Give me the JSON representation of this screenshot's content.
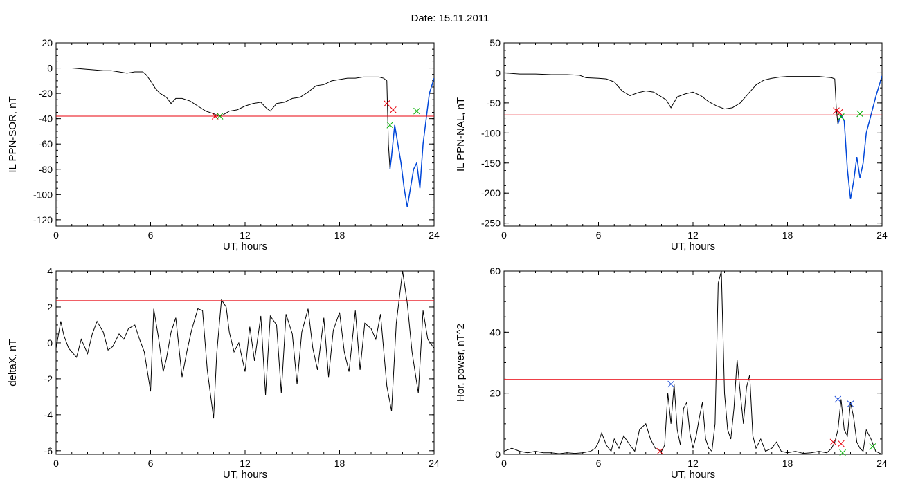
{
  "page": {
    "title": "Date:  15.11.2011"
  },
  "colors": {
    "threshold": "#e8000b",
    "trace": "#000000",
    "substorm_segment": "#0047d9",
    "marker_red": "#e8000b",
    "marker_green": "#00b000",
    "marker_blue": "#1f4fd8"
  },
  "chart_data": [
    {
      "id": "sor",
      "type": "line",
      "xlabel": "UT, hours",
      "ylabel": "IL PPN-SOR, nT",
      "xlim": [
        0,
        24
      ],
      "ylim": [
        -125,
        20
      ],
      "xticks": [
        0,
        6,
        12,
        18,
        24
      ],
      "yticks": [
        20,
        0,
        -20,
        -40,
        -60,
        -80,
        -100,
        -120
      ],
      "grid": false,
      "threshold": -38,
      "series": [
        {
          "x": [
            0,
            1,
            2,
            3,
            3.5,
            4,
            4.5,
            5,
            5.5,
            5.7,
            6,
            6.3,
            6.6,
            7,
            7.3,
            7.6,
            8,
            8.5,
            9,
            9.5,
            10,
            10.3,
            10.6,
            11,
            11.5,
            12,
            12.5,
            13,
            13.3,
            13.6,
            14,
            14.5,
            15,
            15.5,
            16,
            16.5,
            17,
            17.5,
            18,
            18.5,
            19,
            19.5,
            20,
            20.5,
            20.8,
            21,
            21.1,
            21.2,
            21.3,
            21.5,
            21.7,
            21.9,
            22.1,
            22.3,
            22.5,
            22.7,
            22.9,
            23.1,
            23.3,
            23.5,
            23.7,
            24
          ],
          "y": [
            0,
            0,
            -1,
            -2,
            -2,
            -3,
            -4,
            -3,
            -3,
            -5,
            -10,
            -16,
            -20,
            -23,
            -28,
            -24,
            -24,
            -26,
            -30,
            -34,
            -36,
            -38,
            -37,
            -34,
            -33,
            -30,
            -28,
            -27,
            -31,
            -34,
            -28,
            -27,
            -24,
            -23,
            -19,
            -14,
            -13,
            -10,
            -9,
            -8,
            -8,
            -7,
            -7,
            -7,
            -8,
            -10,
            -60,
            -80,
            -70,
            -45,
            -60,
            -75,
            -95,
            -110,
            -95,
            -80,
            -75,
            -95,
            -60,
            -40,
            -20,
            -8
          ],
          "highlight_from_x": 21.2
        }
      ],
      "markers": [
        {
          "x": 10.1,
          "y": -38,
          "color": "red"
        },
        {
          "x": 10.4,
          "y": -38,
          "color": "green"
        },
        {
          "x": 21.0,
          "y": -28,
          "color": "red"
        },
        {
          "x": 21.4,
          "y": -33,
          "color": "red"
        },
        {
          "x": 21.2,
          "y": -45,
          "color": "green"
        },
        {
          "x": 22.9,
          "y": -34,
          "color": "green"
        }
      ]
    },
    {
      "id": "nal",
      "type": "line",
      "xlabel": "UT, hours",
      "ylabel": "IL PPN-NAL, nT",
      "xlim": [
        0,
        24
      ],
      "ylim": [
        -255,
        50
      ],
      "xticks": [
        0,
        6,
        12,
        18,
        24
      ],
      "yticks": [
        50,
        0,
        -50,
        -100,
        -150,
        -200,
        -250
      ],
      "grid": false,
      "threshold": -70,
      "series": [
        {
          "x": [
            0,
            1,
            2,
            3,
            4,
            4.8,
            5.2,
            6,
            6.5,
            7,
            7.5,
            8,
            8.5,
            9,
            9.5,
            10,
            10.3,
            10.6,
            11,
            11.5,
            12,
            12.5,
            13,
            13.5,
            14,
            14.5,
            15,
            15.5,
            16,
            16.5,
            17,
            17.5,
            18,
            19,
            20,
            20.8,
            21,
            21.1,
            21.2,
            21.4,
            21.6,
            21.8,
            22,
            22.2,
            22.4,
            22.6,
            22.8,
            23,
            23.3,
            23.6,
            24
          ],
          "y": [
            0,
            -2,
            -2,
            -3,
            -3,
            -4,
            -8,
            -9,
            -10,
            -15,
            -30,
            -38,
            -33,
            -30,
            -32,
            -40,
            -45,
            -58,
            -40,
            -35,
            -32,
            -38,
            -48,
            -55,
            -60,
            -58,
            -50,
            -35,
            -20,
            -12,
            -9,
            -7,
            -6,
            -6,
            -6,
            -8,
            -10,
            -60,
            -85,
            -70,
            -80,
            -160,
            -210,
            -180,
            -140,
            -175,
            -150,
            -100,
            -70,
            -40,
            -5
          ],
          "highlight_from_x": 21.2
        }
      ],
      "markers": [
        {
          "x": 21.1,
          "y": -63,
          "color": "red"
        },
        {
          "x": 21.3,
          "y": -66,
          "color": "red"
        },
        {
          "x": 21.4,
          "y": -73,
          "color": "green"
        },
        {
          "x": 22.6,
          "y": -68,
          "color": "green"
        }
      ]
    },
    {
      "id": "deltax",
      "type": "line",
      "xlabel": "UT, hours",
      "ylabel": "deltaX, nT",
      "xlim": [
        0,
        24
      ],
      "ylim": [
        -6.2,
        4
      ],
      "xticks": [
        0,
        6,
        12,
        18,
        24
      ],
      "yticks": [
        4,
        2,
        0,
        -2,
        -4,
        -6
      ],
      "grid": false,
      "threshold": 2.35,
      "series": [
        {
          "x": [
            0,
            0.3,
            0.5,
            0.8,
            1,
            1.3,
            1.6,
            2,
            2.3,
            2.6,
            3,
            3.3,
            3.6,
            4,
            4.3,
            4.6,
            5,
            5.3,
            5.6,
            6,
            6.2,
            6.5,
            6.8,
            7,
            7.3,
            7.6,
            8,
            8.3,
            8.6,
            9,
            9.3,
            9.6,
            10,
            10.2,
            10.5,
            10.8,
            11,
            11.3,
            11.6,
            12,
            12.3,
            12.6,
            13,
            13.3,
            13.6,
            14,
            14.3,
            14.6,
            15,
            15.3,
            15.6,
            16,
            16.3,
            16.6,
            17,
            17.3,
            17.6,
            18,
            18.3,
            18.6,
            19,
            19.3,
            19.6,
            20,
            20.3,
            20.6,
            21,
            21.3,
            21.6,
            22,
            22.3,
            22.6,
            23,
            23.3,
            23.6,
            24
          ],
          "y": [
            -0.3,
            1.2,
            0.4,
            -0.3,
            -0.5,
            -0.8,
            0.2,
            -0.6,
            0.5,
            1.2,
            0.6,
            -0.4,
            -0.2,
            0.5,
            0.2,
            0.8,
            1.0,
            0.2,
            -0.5,
            -2.7,
            1.9,
            0.3,
            -1.6,
            -0.9,
            0.6,
            1.4,
            -1.9,
            -0.5,
            0.7,
            1.9,
            1.8,
            -1.5,
            -4.2,
            -0.6,
            2.4,
            2.0,
            0.6,
            -0.5,
            0.0,
            -1.6,
            0.9,
            -1.0,
            1.5,
            -2.9,
            1.5,
            1.0,
            -2.8,
            1.6,
            0.5,
            -2.3,
            0.6,
            1.9,
            -0.3,
            -1.5,
            1.4,
            -1.9,
            0.7,
            1.7,
            -0.5,
            -1.6,
            1.8,
            -1.5,
            1.1,
            0.8,
            0.2,
            1.6,
            -2.4,
            -3.8,
            1.1,
            4.0,
            2.2,
            -0.5,
            -2.8,
            1.8,
            0.2,
            -0.3
          ],
          "highlight_from_x": null
        }
      ],
      "markers": []
    },
    {
      "id": "power",
      "type": "line",
      "xlabel": "UT, hours",
      "ylabel": "Hor. power, nT^2",
      "xlim": [
        0,
        24
      ],
      "ylim": [
        0,
        60
      ],
      "xticks": [
        0,
        6,
        12,
        18,
        24
      ],
      "yticks": [
        60,
        40,
        20,
        0
      ],
      "grid": false,
      "threshold": 24.5,
      "series": [
        {
          "x": [
            0,
            0.5,
            1,
            1.5,
            2,
            2.5,
            3,
            3.5,
            4,
            4.5,
            5,
            5.5,
            5.8,
            6,
            6.2,
            6.5,
            6.8,
            7,
            7.3,
            7.6,
            8,
            8.3,
            8.6,
            9,
            9.3,
            9.6,
            10,
            10.2,
            10.4,
            10.6,
            10.8,
            11,
            11.2,
            11.4,
            11.6,
            11.8,
            12,
            12.2,
            12.4,
            12.6,
            12.8,
            13,
            13.2,
            13.4,
            13.6,
            13.8,
            14,
            14.2,
            14.4,
            14.6,
            14.8,
            15,
            15.2,
            15.4,
            15.6,
            15.8,
            16,
            16.3,
            16.6,
            17,
            17.3,
            17.6,
            18,
            18.5,
            19,
            19.5,
            20,
            20.5,
            20.8,
            21,
            21.2,
            21.4,
            21.6,
            21.8,
            22,
            22.2,
            22.4,
            22.6,
            22.8,
            23,
            23.3,
            23.6,
            24
          ],
          "y": [
            1,
            2,
            1,
            0.5,
            1,
            0.5,
            0.5,
            0.2,
            0.5,
            0.3,
            0.5,
            1,
            2,
            4,
            7,
            3,
            1,
            5,
            2,
            6,
            3,
            1,
            8,
            10,
            5,
            2,
            1,
            3,
            20,
            10,
            23,
            8,
            3,
            15,
            17,
            7,
            2,
            6,
            12,
            17,
            5,
            2,
            1,
            10,
            56,
            60,
            20,
            8,
            5,
            15,
            31,
            20,
            10,
            22,
            26,
            6,
            2,
            5,
            1,
            2,
            4,
            1,
            0.5,
            1,
            0.3,
            0.5,
            1,
            0.5,
            2,
            4,
            8,
            18,
            8,
            6,
            17,
            12,
            4,
            2,
            1,
            8,
            5,
            1,
            0
          ],
          "highlight_from_x": null
        }
      ],
      "markers": [
        {
          "x": 10.6,
          "y": 23,
          "color": "blue"
        },
        {
          "x": 9.9,
          "y": 1,
          "color": "red"
        },
        {
          "x": 20.9,
          "y": 4,
          "color": "red"
        },
        {
          "x": 21.4,
          "y": 3.5,
          "color": "red"
        },
        {
          "x": 21.2,
          "y": 18,
          "color": "blue"
        },
        {
          "x": 22.0,
          "y": 16.5,
          "color": "blue"
        },
        {
          "x": 21.5,
          "y": 0.5,
          "color": "green"
        },
        {
          "x": 23.4,
          "y": 2.5,
          "color": "green"
        }
      ]
    }
  ]
}
